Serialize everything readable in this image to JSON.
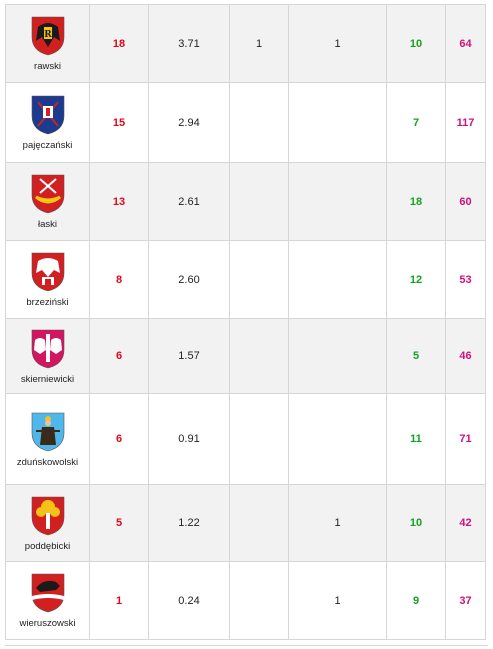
{
  "rows": [
    {
      "name": "rawski",
      "c2": "18",
      "c3": "3.71",
      "c4": "1",
      "c5": "1",
      "c6": "10",
      "c7": "64",
      "crest_colors": [
        "#d21f1f",
        "#1a1a1a",
        "#f3c318"
      ]
    },
    {
      "name": "pajęczański",
      "c2": "15",
      "c3": "2.94",
      "c4": "",
      "c5": "",
      "c6": "7",
      "c7": "117",
      "crest_colors": [
        "#1c3b8f",
        "#f3c318",
        "#d21f1f"
      ]
    },
    {
      "name": "łaski",
      "c2": "13",
      "c3": "2.61",
      "c4": "",
      "c5": "",
      "c6": "18",
      "c7": "60",
      "crest_colors": [
        "#d21f1f",
        "#f3c318",
        "#ffffff"
      ]
    },
    {
      "name": "brzeziński",
      "c2": "8",
      "c3": "2.60",
      "c4": "",
      "c5": "",
      "c6": "12",
      "c7": "53",
      "crest_colors": [
        "#d21f1f",
        "#ffffff",
        "#555555"
      ]
    },
    {
      "name": "skierniewicki",
      "c2": "6",
      "c3": "1.57",
      "c4": "",
      "c5": "",
      "c6": "5",
      "c7": "46",
      "crest_colors": [
        "#d3155f",
        "#ffffff",
        "#f3c318"
      ]
    },
    {
      "name": "zduńskowolski",
      "c2": "6",
      "c3": "0.91",
      "c4": "",
      "c5": "",
      "c6": "11",
      "c7": "71",
      "crest_colors": [
        "#4fb7ea",
        "#3a2a1a",
        "#f3c318"
      ]
    },
    {
      "name": "poddębicki",
      "c2": "5",
      "c3": "1.22",
      "c4": "",
      "c5": "1",
      "c6": "10",
      "c7": "42",
      "crest_colors": [
        "#d21f1f",
        "#f3c318",
        "#ffffff"
      ]
    },
    {
      "name": "wieruszowski",
      "c2": "1",
      "c3": "0.24",
      "c4": "",
      "c5": "1",
      "c6": "9",
      "c7": "37",
      "crest_colors": [
        "#d21f1f",
        "#ffffff",
        "#1a1a1a"
      ]
    }
  ],
  "colors": {
    "red": "#e1091c",
    "green": "#14a31e",
    "pink": "#d0127d"
  }
}
